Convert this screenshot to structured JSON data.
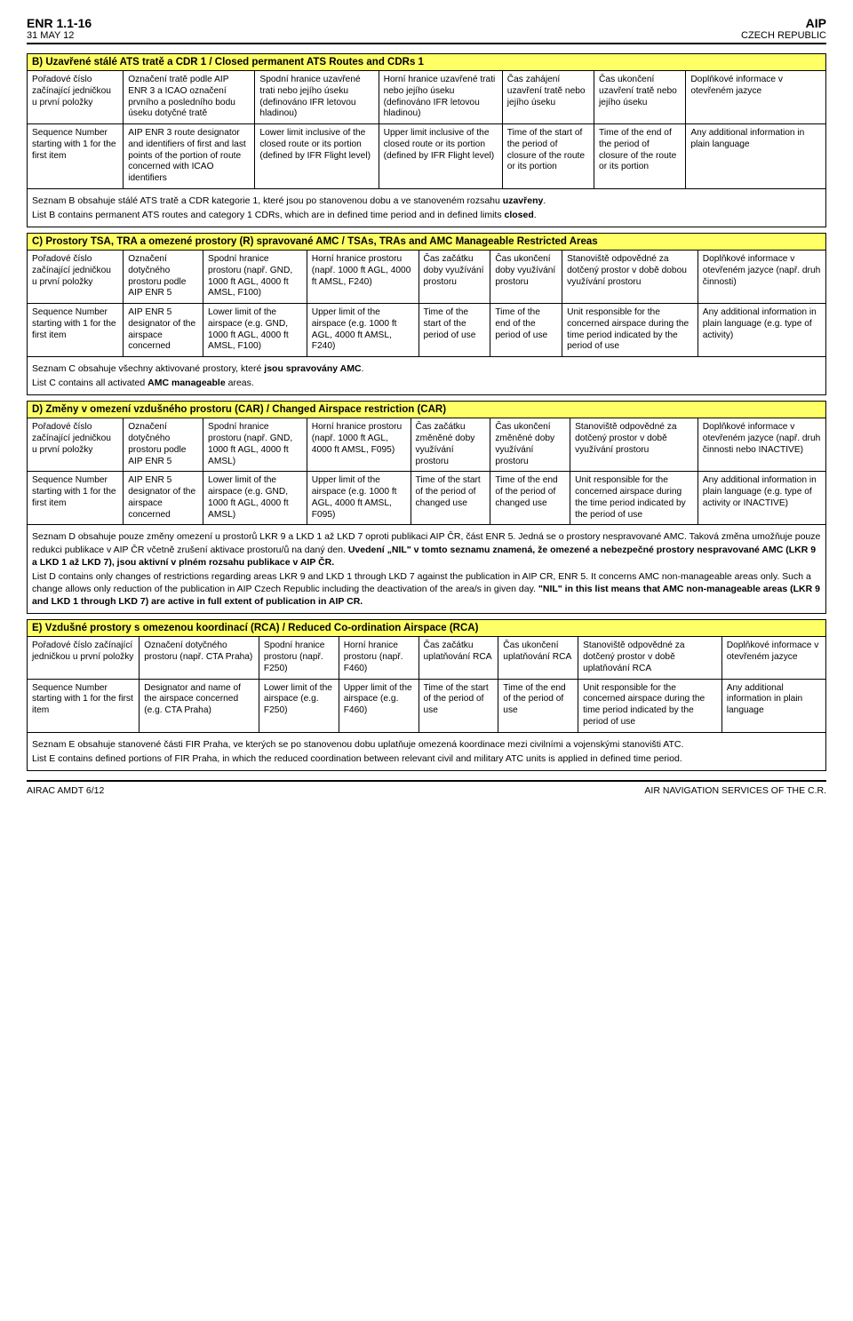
{
  "header": {
    "doc": "ENR 1.1-16",
    "date": "31 MAY 12",
    "aip": "AIP",
    "country": "CZECH REPUBLIC"
  },
  "footer": {
    "left": "AIRAC AMDT 6/12",
    "right": "AIR NAVIGATION SERVICES OF THE C.R."
  },
  "sectionB": {
    "title": "B) Uzavřené stálé ATS tratě a CDR 1 / Closed permanent ATS Routes and CDRs 1",
    "widths": [
      "12%",
      "16.5%",
      "15.5%",
      "15.5%",
      "11.5%",
      "11.5%",
      "17.5%"
    ],
    "row1": [
      "Pořadové číslo začínající jedničkou u první položky",
      "Označení tratě podle AIP ENR 3 a ICAO označení prvního a posledního bodu úseku dotyčné tratě",
      "Spodní hranice uzavřené trati nebo jejího úseku (definováno IFR letovou hladinou)",
      "Horní hranice uzavřené trati nebo jejího úseku (definováno IFR letovou hladinou)",
      "Čas zahájení uzavření tratě nebo jejího úseku",
      "Čas ukončení uzavření tratě nebo jejího úseku",
      "Doplňkové informace v otevřeném jazyce"
    ],
    "row2": [
      "Sequence Number starting with 1 for the first item",
      "AIP ENR 3 route designator and identifiers of first and last points of the portion of route concerned with ICAO identifiers",
      "Lower limit inclusive of the closed route or its portion (defined by IFR Flight level)",
      "Upper limit inclusive of the closed route or its portion (defined by IFR Flight level)",
      "Time of the start of the period of closure of the route or its portion",
      "Time of the end of the period of closure of the route or its portion",
      "Any additional information in plain language"
    ],
    "note1": "Seznam B obsahuje stálé ATS tratě a CDR kategorie 1, které jsou po stanovenou dobu a ve stanoveném rozsahu <b>uzavřeny</b>.",
    "note2": "List B contains permanent ATS routes and category 1 CDRs, which are in defined time period and in defined limits <b>closed</b>."
  },
  "sectionC": {
    "title": "C) Prostory TSA, TRA a omezené prostory (R) spravované AMC / TSAs, TRAs and AMC Manageable Restricted Areas",
    "widths": [
      "12%",
      "10%",
      "13%",
      "14%",
      "9%",
      "9%",
      "17%",
      "16%"
    ],
    "row1": [
      "Pořadové číslo začínající jedničkou u první položky",
      "Označení dotyčného prostoru podle AIP ENR 5",
      "Spodní hranice prostoru (např. GND, 1000 ft AGL, 4000 ft AMSL, F100)",
      "Horní hranice prostoru (např. 1000 ft AGL, 4000 ft AMSL, F240)",
      "Čas začátku doby využívání prostoru",
      "Čas ukončení doby využívání prostoru",
      "Stanoviště odpovědné za dotčený prostor v době dobou využívání prostoru",
      "Doplňkové informace v otevřeném jazyce (např. druh činnosti)"
    ],
    "row2": [
      "Sequence Number starting with 1 for the first item",
      "AIP ENR 5 designator of the airspace concerned",
      "Lower limit of the airspace (e.g. GND, 1000 ft AGL, 4000 ft AMSL, F100)",
      "Upper limit of the airspace (e.g. 1000 ft AGL, 4000 ft AMSL, F240)",
      "Time of the start of the period of use",
      "Time of the end of the period of use",
      "Unit responsible for the concerned airspace during the time period indicated by the period of use",
      "Any additional information in plain language (e.g. type of activity)"
    ],
    "note1": "Seznam C obsahuje všechny aktivované prostory, které <b>jsou spravovány AMC</b>.",
    "note2": "List C contains all activated <b>AMC manageable</b> areas."
  },
  "sectionD": {
    "title": "D) Změny v omezení vzdušného prostoru (CAR) / Changed Airspace restriction (CAR)",
    "widths": [
      "12%",
      "10%",
      "13%",
      "13%",
      "10%",
      "10%",
      "16%",
      "16%"
    ],
    "row1": [
      "Pořadové číslo začínající jedničkou u první položky",
      "Označení dotyčného prostoru podle AIP ENR 5",
      "Spodní hranice prostoru (např. GND, 1000 ft AGL, 4000 ft AMSL)",
      "Horní hranice prostoru (např. 1000 ft AGL, 4000 ft AMSL, F095)",
      "Čas začátku změněné doby využívání prostoru",
      "Čas ukončení změněné doby využívání prostoru",
      "Stanoviště odpovědné za dotčený prostor v době využívání prostoru",
      "Doplňkové informace v otevřeném jazyce (např. druh činnosti nebo INACTIVE)"
    ],
    "row2": [
      "Sequence Number starting with 1 for the first item",
      "AIP ENR 5 designator of the airspace concerned",
      "Lower limit of the airspace (e.g. GND, 1000 ft AGL, 4000 ft AMSL)",
      "Upper limit of the airspace (e.g. 1000 ft AGL, 4000 ft AMSL, F095)",
      "Time of the start of the period of changed use",
      "Time of the end of the period of changed use",
      "Unit responsible for the concerned airspace during the time period indicated by the period of use",
      "Any additional information in plain language (e.g. type of activity or INACTIVE)"
    ],
    "note1": "Seznam D obsahuje pouze změny omezení u prostorů  LKR 9 a LKD 1 až LKD 7 oproti publikaci AIP ČR, část ENR 5. Jedná se o prostory nespravované AMC.  Taková změna umožňuje pouze redukci publikace v AIP ČR včetně zrušení aktivace prostoru/ů na daný den. <b>Uvedení „NIL\" v tomto seznamu znamená, že omezené a nebezpečné prostory nespravované AMC (LKR 9 a LKD 1 až LKD 7), jsou aktivní v plném rozsahu publikace v AIP ČR.</b>",
    "note2": "List D contains only changes of restrictions regarding areas LKR 9 and LKD 1 through LKD 7 against the publication in AIP CR, ENR 5. It concerns AMC non-manageable areas only. Such a change allows only reduction of the publication in AIP Czech Republic including the deactivation of the area/s in given day. <b>\"NIL\" in this list means that AMC non-manageable areas (LKR 9 and LKD 1 through LKD 7) are active in full extent of publication in AIP CR.</b>"
  },
  "sectionE": {
    "title": "E) Vzdušné prostory s omezenou koordinací (RCA) / Reduced Co-ordination Airspace (RCA)",
    "widths": [
      "14%",
      "15%",
      "10%",
      "10%",
      "10%",
      "10%",
      "18%",
      "13%"
    ],
    "row1": [
      "Pořadové číslo začínající jedničkou u první položky",
      "Označení dotyčného prostoru (např. CTA Praha)",
      "Spodní hranice prostoru (např. F250)",
      "Horní hranice prostoru (např. F460)",
      "Čas začátku uplatňování RCA",
      "Čas ukončení uplatňování RCA",
      "Stanoviště odpovědné za dotčený prostor v době uplatňování RCA",
      "Doplňkové informace v otevřeném jazyce"
    ],
    "row2": [
      "Sequence Number starting with 1 for the first item",
      "Designator and name of the airspace concerned (e.g. CTA Praha)",
      "Lower limit of the airspace (e.g. F250)",
      "Upper limit of the airspace (e.g. F460)",
      "Time of the start of the period of use",
      "Time of the end of the period of use",
      "Unit responsible for the concerned airspace during the time period indicated by the period of use",
      "Any additional information in plain language"
    ],
    "note1": "Seznam E obsahuje stanovené části FIR Praha, ve kterých se po stanovenou dobu uplatňuje omezená koordinace mezi civilními a vojenskými stanovišti ATC.",
    "note2": "List E contains defined portions of FIR Praha, in which the reduced coordination between relevant civil and military ATC units is applied in defined time period."
  }
}
